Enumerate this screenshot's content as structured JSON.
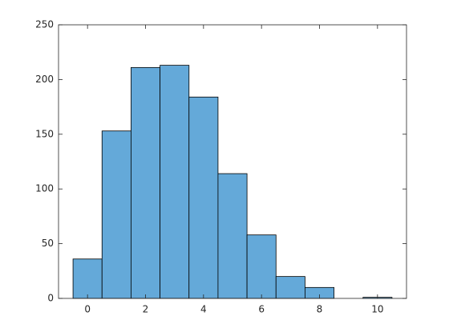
{
  "chart_data": {
    "type": "histogram",
    "bins": [
      -0.5,
      0.5,
      1.5,
      2.5,
      3.5,
      4.5,
      5.5,
      6.5,
      7.5,
      8.5,
      9.5,
      10.5
    ],
    "counts": [
      36,
      153,
      211,
      213,
      184,
      114,
      58,
      20,
      10,
      0,
      1
    ],
    "color": "#64a9d9",
    "edgecolor": "#000000",
    "xlim": [
      -1,
      11
    ],
    "xticks": [
      0,
      2,
      4,
      6,
      8,
      10
    ],
    "ylim": [
      0,
      250
    ],
    "yticks": [
      0,
      50,
      100,
      150,
      200,
      250
    ],
    "grid": false
  }
}
